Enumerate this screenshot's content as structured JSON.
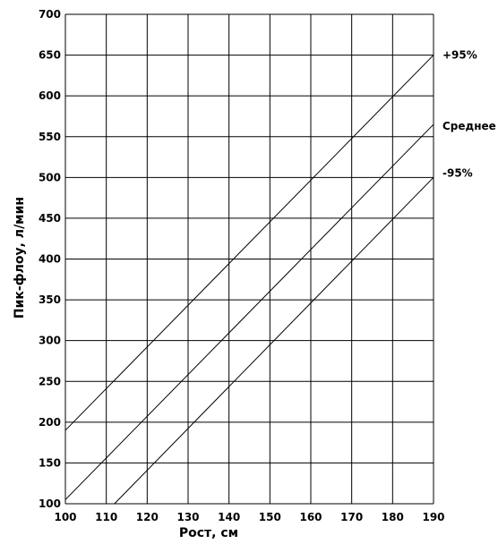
{
  "chart_data": {
    "type": "line",
    "title": "",
    "xlabel": "Рост, см",
    "ylabel": "Пик-флоу, л/мин",
    "xlim": [
      100,
      190
    ],
    "ylim": [
      100,
      700
    ],
    "xticks": [
      100,
      110,
      120,
      130,
      140,
      150,
      160,
      170,
      180,
      190
    ],
    "yticks": [
      100,
      150,
      200,
      250,
      300,
      350,
      400,
      450,
      500,
      550,
      600,
      650,
      700
    ],
    "grid": true,
    "series": [
      {
        "name": "+95%",
        "x": [
          100,
          190
        ],
        "y": [
          190,
          650
        ]
      },
      {
        "name": "Среднее",
        "x": [
          100,
          190
        ],
        "y": [
          105,
          565
        ]
      },
      {
        "name": "-95%",
        "x": [
          112,
          190
        ],
        "y": [
          100,
          500
        ]
      }
    ]
  }
}
